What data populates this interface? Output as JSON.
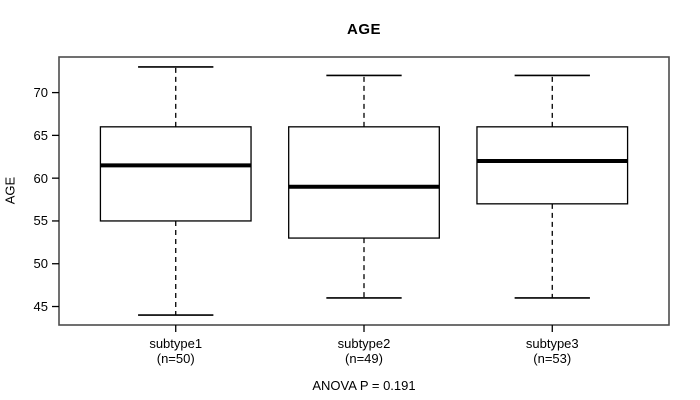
{
  "chart_data": {
    "type": "boxplot",
    "title": "AGE",
    "ylabel": "AGE",
    "annotation": "ANOVA P = 0.191",
    "yticks": [
      45,
      50,
      55,
      60,
      65,
      70
    ],
    "ylim": [
      42.84,
      74.16
    ],
    "grid": false,
    "legend": "none",
    "groups": [
      {
        "label": "subtype1",
        "sublabel": "(n=50)",
        "whisker_low": 44,
        "q1": 55,
        "median": 61.5,
        "q3": 66,
        "whisker_high": 73
      },
      {
        "label": "subtype2",
        "sublabel": "(n=49)",
        "whisker_low": 46,
        "q1": 53,
        "median": 59,
        "q3": 66,
        "whisker_high": 72
      },
      {
        "label": "subtype3",
        "sublabel": "(n=53)",
        "whisker_low": 46,
        "q1": 57,
        "median": 62,
        "q3": 66,
        "whisker_high": 72
      }
    ],
    "colors": {
      "frame": "#4d4d4d",
      "line": "#000000",
      "median": "#000000",
      "box_fill": "#ffffff",
      "background": "#ffffff",
      "text": "#000000"
    }
  }
}
